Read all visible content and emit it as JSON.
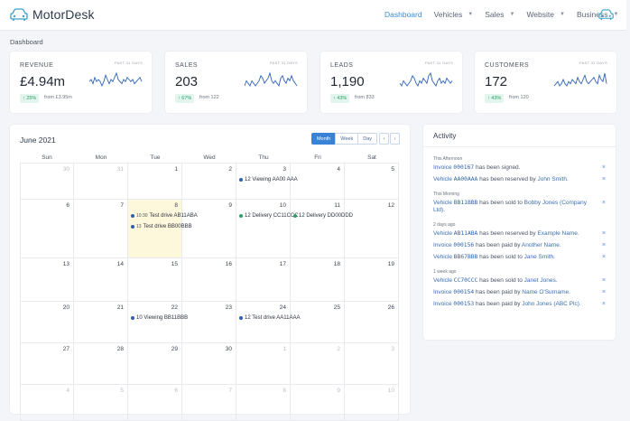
{
  "app": {
    "name": "MotorDesk"
  },
  "nav": {
    "items": [
      {
        "label": "Dashboard",
        "active": true,
        "caret": false
      },
      {
        "label": "Vehicles",
        "active": false,
        "caret": true
      },
      {
        "label": "Sales",
        "active": false,
        "caret": true
      },
      {
        "label": "Website",
        "active": false,
        "caret": true
      },
      {
        "label": "Business",
        "active": false,
        "caret": true
      }
    ]
  },
  "breadcrumb": "Dashboard",
  "stats": [
    {
      "label": "REVENUE",
      "period": "PAST 31 DAYS",
      "value": "£4.94m",
      "change": "↑ 25%",
      "from": "from £3.95m",
      "spark": [
        5,
        6,
        4,
        7,
        5,
        6,
        5,
        3,
        5,
        8,
        6,
        4,
        6,
        5,
        7,
        9,
        6,
        5,
        4,
        6,
        5,
        7,
        6,
        5,
        6,
        4,
        5,
        6,
        7,
        5
      ]
    },
    {
      "label": "SALES",
      "period": "PAST 31 DAYS",
      "value": "203",
      "change": "↑ 67%",
      "from": "from 122",
      "spark": [
        4,
        6,
        5,
        4,
        6,
        5,
        4,
        5,
        6,
        8,
        7,
        5,
        6,
        7,
        9,
        6,
        5,
        6,
        5,
        4,
        7,
        8,
        6,
        5,
        7,
        6,
        8,
        6,
        5,
        4
      ]
    },
    {
      "label": "LEADS",
      "period": "PAST 31 DAYS",
      "value": "1,190",
      "change": "↑ 43%",
      "from": "from 833",
      "spark": [
        5,
        4,
        6,
        5,
        4,
        5,
        6,
        8,
        7,
        5,
        4,
        6,
        5,
        7,
        6,
        5,
        8,
        9,
        6,
        5,
        4,
        6,
        7,
        5,
        6,
        5,
        7,
        6,
        5,
        6
      ]
    },
    {
      "label": "CUSTOMERS",
      "period": "PAST 31 DAYS",
      "value": "172",
      "change": "↑ 43%",
      "from": "from 120",
      "spark": [
        4,
        5,
        6,
        4,
        5,
        7,
        5,
        4,
        6,
        5,
        7,
        6,
        5,
        8,
        6,
        5,
        7,
        9,
        6,
        5,
        6,
        7,
        8,
        6,
        5,
        9,
        7,
        6,
        10,
        5
      ]
    }
  ],
  "calendar": {
    "title": "June 2021",
    "views": [
      "Month",
      "Week",
      "Day"
    ],
    "active_view": "Month",
    "prev": "‹",
    "next": "›",
    "dow": [
      "Sun",
      "Mon",
      "Tue",
      "Wed",
      "Thu",
      "Fri",
      "Sat"
    ],
    "weeks": [
      {
        "days": [
          {
            "n": "30",
            "m": true
          },
          {
            "n": "31",
            "m": true
          },
          {
            "n": "1"
          },
          {
            "n": "2"
          },
          {
            "n": "3",
            "ev": [
              {
                "t": "12 Viewing AA00 AAA",
                "c": "#2c5fb0"
              }
            ]
          },
          {
            "n": "4"
          },
          {
            "n": "5"
          }
        ]
      },
      {
        "days": [
          {
            "n": "6"
          },
          {
            "n": "7"
          },
          {
            "n": "8",
            "today": true,
            "ev": [
              {
                "tm": "10:30",
                "t": "Test drive AB11ABA",
                "c": "#2c5fb0"
              },
              {
                "tm": "13",
                "t": "Test drive BB00BBB",
                "c": "#2c5fb0"
              }
            ]
          },
          {
            "n": "9"
          },
          {
            "n": "10",
            "ev": [
              {
                "t": "12 Delivery CC11CCC",
                "c": "#2aa06a"
              }
            ]
          },
          {
            "n": "11",
            "ev": [
              {
                "t": "12 Delivery DD00DDD",
                "c": "#2aa06a"
              }
            ]
          },
          {
            "n": "12"
          }
        ]
      },
      {
        "days": [
          {
            "n": "13"
          },
          {
            "n": "14"
          },
          {
            "n": "15"
          },
          {
            "n": "16"
          },
          {
            "n": "17"
          },
          {
            "n": "18"
          },
          {
            "n": "19"
          }
        ]
      },
      {
        "days": [
          {
            "n": "20"
          },
          {
            "n": "21"
          },
          {
            "n": "22",
            "ev": [
              {
                "t": "10 Viewing BB11BBB",
                "c": "#2c5fb0"
              }
            ]
          },
          {
            "n": "23"
          },
          {
            "n": "24",
            "ev": [
              {
                "t": "12 Test drive AA11AAA",
                "c": "#2c5fb0"
              }
            ]
          },
          {
            "n": "25"
          },
          {
            "n": "26"
          }
        ]
      },
      {
        "days": [
          {
            "n": "27"
          },
          {
            "n": "28"
          },
          {
            "n": "29"
          },
          {
            "n": "30"
          },
          {
            "n": "1",
            "m": true
          },
          {
            "n": "2",
            "m": true
          },
          {
            "n": "3",
            "m": true
          }
        ]
      },
      {
        "days": [
          {
            "n": "4",
            "m": true
          },
          {
            "n": "5",
            "m": true
          },
          {
            "n": "6",
            "m": true
          },
          {
            "n": "7",
            "m": true
          },
          {
            "n": "8",
            "m": true
          },
          {
            "n": "9",
            "m": true
          },
          {
            "n": "10",
            "m": true
          }
        ]
      }
    ]
  },
  "activity": {
    "title": "Activity",
    "close_glyph": "×",
    "groups": [
      {
        "label": "This Afternoon",
        "items": [
          [
            {
              "t": "Invoice "
            },
            {
              "t": "000167",
              "b": true
            },
            {
              "t": " has been signed.",
              "d": true
            }
          ],
          [
            {
              "t": "Vehicle "
            },
            {
              "t": "AA00AAA",
              "b": true
            },
            {
              "t": " has been reserved by ",
              "d": true
            },
            {
              "t": "John Smith."
            }
          ]
        ]
      },
      {
        "label": "This Morning",
        "items": [
          [
            {
              "t": "Vehicle "
            },
            {
              "t": "BB11BBB",
              "b": true
            },
            {
              "t": " has been sold to ",
              "d": true
            },
            {
              "t": "Bobby Jones (Company Ltd)."
            }
          ]
        ]
      },
      {
        "label": "2 days ago",
        "items": [
          [
            {
              "t": "Vehicle "
            },
            {
              "t": "AB11ABA",
              "b": true
            },
            {
              "t": " has been reserved by ",
              "d": true
            },
            {
              "t": "Example Name."
            }
          ],
          [
            {
              "t": "Invoice "
            },
            {
              "t": "000156",
              "b": true
            },
            {
              "t": " has been paid by ",
              "d": true
            },
            {
              "t": "Another Name."
            }
          ],
          [
            {
              "t": "Vehicle "
            },
            {
              "t": "BB67BBB",
              "b": true
            },
            {
              "t": " has been sold to ",
              "d": true
            },
            {
              "t": "Jane Smith."
            }
          ]
        ]
      },
      {
        "label": "1 week ago",
        "items": [
          [
            {
              "t": "Vehicle "
            },
            {
              "t": "CC70CCC",
              "b": true
            },
            {
              "t": " has been sold to ",
              "d": true
            },
            {
              "t": "Janet Jones."
            }
          ],
          [
            {
              "t": "Invoice "
            },
            {
              "t": "000154",
              "b": true
            },
            {
              "t": " has been paid by ",
              "d": true
            },
            {
              "t": "Name O'Surname."
            }
          ],
          [
            {
              "t": "Invoice "
            },
            {
              "t": "000153",
              "b": true
            },
            {
              "t": " has been paid by ",
              "d": true
            },
            {
              "t": "John Jones (ABC Plc)."
            }
          ]
        ]
      }
    ]
  },
  "colors": {
    "accent": "#3a8ad6",
    "success": "#2aa06a",
    "today": "#fdf7dc"
  }
}
